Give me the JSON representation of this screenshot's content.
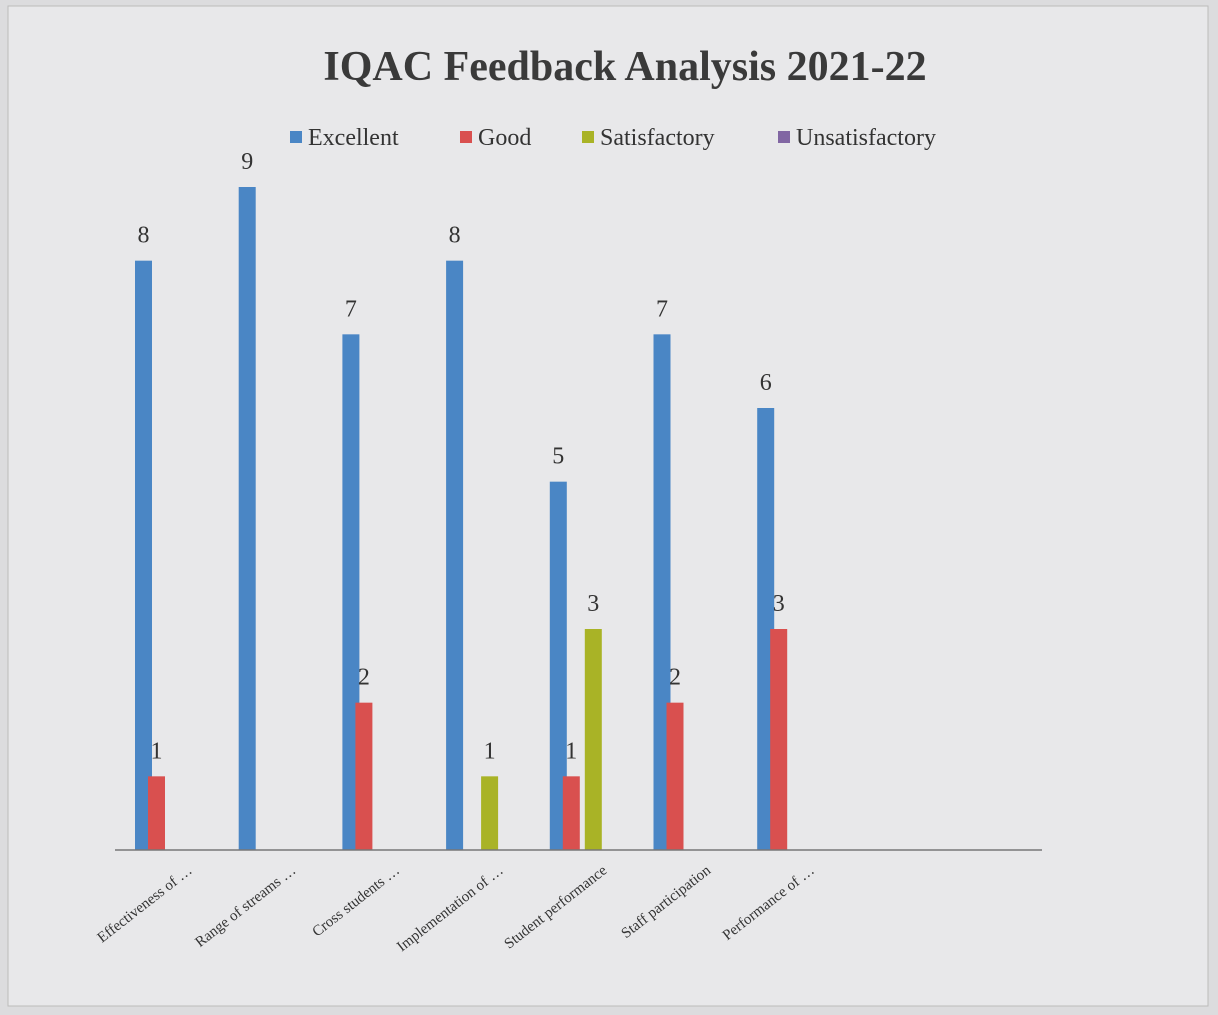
{
  "chart_data": {
    "type": "bar",
    "title": "IQAC Feedback Analysis 2021-22",
    "categories": [
      "Effectiveness of …",
      "Range of streams …",
      "Cross students …",
      "Implementation of …",
      "Student performance",
      "Staff participation",
      "Performance of …",
      null,
      null
    ],
    "series": [
      {
        "name": "Excellent",
        "color": "#4a86c5",
        "values": [
          8,
          9,
          7,
          8,
          5,
          7,
          6,
          null,
          null
        ]
      },
      {
        "name": "Good",
        "color": "#d9504f",
        "values": [
          1,
          null,
          2,
          null,
          1,
          2,
          3,
          null,
          null
        ]
      },
      {
        "name": "Satisfactory",
        "color": "#a9b326",
        "values": [
          null,
          null,
          null,
          1,
          3,
          null,
          null,
          null,
          null
        ]
      },
      {
        "name": "Unsatisfactory",
        "color": "#8166a3",
        "values": [
          null,
          null,
          null,
          null,
          null,
          null,
          null,
          null,
          null
        ]
      }
    ],
    "ylim": [
      0,
      9
    ],
    "legend": "top"
  }
}
